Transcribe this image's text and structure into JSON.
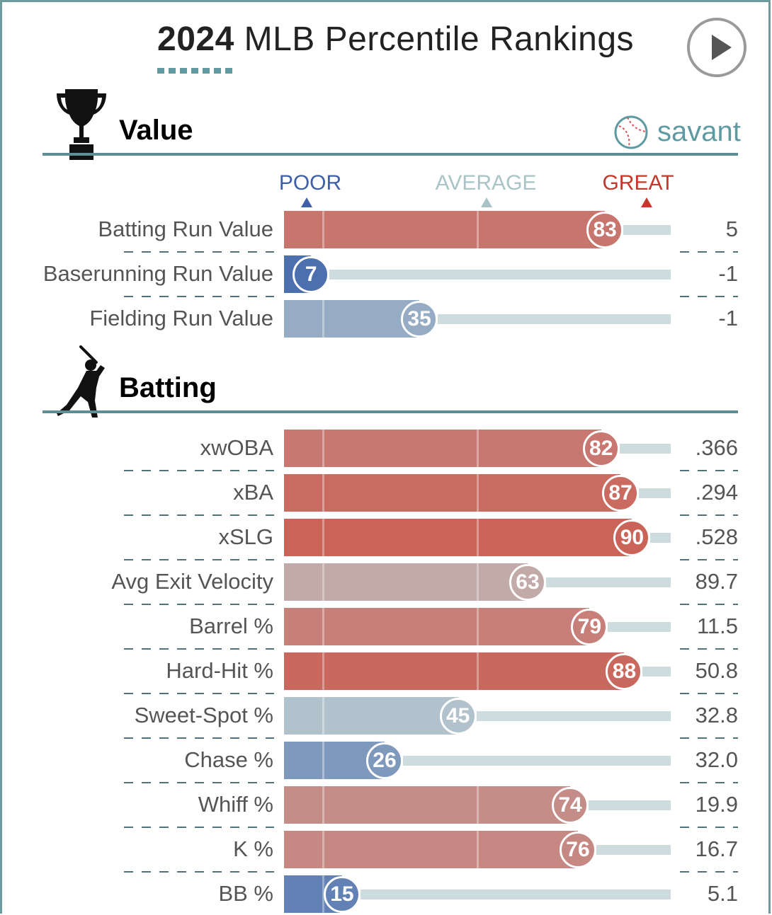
{
  "header": {
    "year": "2024",
    "title_rest": "MLB Percentile Rankings"
  },
  "brand": {
    "name": "savant",
    "color": "#5f9aa2"
  },
  "scale": {
    "poor": "POOR",
    "average": "AVERAGE",
    "great": "GREAT",
    "poor_color": "#3f60a6",
    "average_color": "#a9c3c6",
    "great_color": "#c0392b"
  },
  "icons": {
    "value_section": "trophy-icon",
    "batting_section": "batter-icon",
    "play": "play-icon",
    "logo": "baseball-icon"
  },
  "chart_data": {
    "type": "bar",
    "orientation": "horizontal",
    "xlim": [
      0,
      100
    ],
    "sections": [
      {
        "title": "Value",
        "metrics": [
          {
            "label": "Batting Run Value",
            "percentile": 83,
            "value": "5"
          },
          {
            "label": "Baserunning Run Value",
            "percentile": 7,
            "value": "-1"
          },
          {
            "label": "Fielding Run Value",
            "percentile": 35,
            "value": "-1"
          }
        ]
      },
      {
        "title": "Batting",
        "metrics": [
          {
            "label": "xwOBA",
            "percentile": 82,
            "value": ".366"
          },
          {
            "label": "xBA",
            "percentile": 87,
            "value": ".294"
          },
          {
            "label": "xSLG",
            "percentile": 90,
            "value": ".528"
          },
          {
            "label": "Avg Exit Velocity",
            "percentile": 63,
            "value": "89.7"
          },
          {
            "label": "Barrel %",
            "percentile": 79,
            "value": "11.5"
          },
          {
            "label": "Hard-Hit %",
            "percentile": 88,
            "value": "50.8"
          },
          {
            "label": "Sweet-Spot %",
            "percentile": 45,
            "value": "32.8"
          },
          {
            "label": "Chase %",
            "percentile": 26,
            "value": "32.0"
          },
          {
            "label": "Whiff %",
            "percentile": 74,
            "value": "19.9"
          },
          {
            "label": "K %",
            "percentile": 76,
            "value": "16.7"
          },
          {
            "label": "BB %",
            "percentile": 15,
            "value": "5.1"
          }
        ]
      }
    ]
  }
}
